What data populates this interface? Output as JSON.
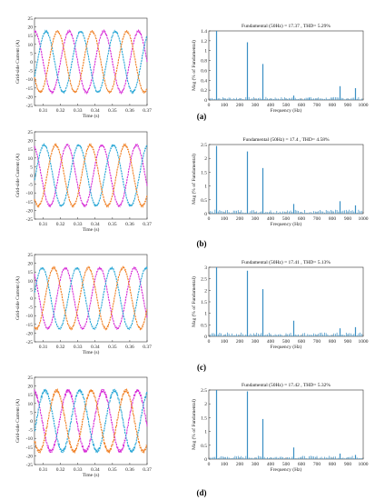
{
  "colors": {
    "phase_a": "#d62ad6",
    "phase_b": "#2aa7d6",
    "phase_c": "#f07f22",
    "spectrum": "#3a8fc4",
    "frame": "#333333"
  },
  "chart_data": [
    {
      "type": "line",
      "panel": "(a)",
      "title": "",
      "xlabel": "Time (s)",
      "ylabel": "Grid-side Current (A)",
      "xlim": [
        0.305,
        0.37
      ],
      "ylim": [
        -25,
        25
      ],
      "x_ticks": [
        "0.31",
        "0.32",
        "0.33",
        "0.34",
        "0.35",
        "0.36",
        "0.37"
      ],
      "y_ticks": [
        "-25",
        "-20",
        "-15",
        "-10",
        "-5",
        "0",
        "5",
        "10",
        "15",
        "20",
        "25"
      ],
      "frequency_hz": 50,
      "series": [
        {
          "amplitude": 17.4,
          "phase_deg": 0,
          "color": "#d62ad6"
        },
        {
          "amplitude": 17.4,
          "phase_deg": -120,
          "color": "#2aa7d6"
        },
        {
          "amplitude": 17.4,
          "phase_deg": 120,
          "color": "#f07f22"
        }
      ]
    },
    {
      "type": "bar",
      "panel": "(a)",
      "title": "Fundamental (50Hz) = 17.37 , THD= 5.29%",
      "xlabel": "Frequency (Hz)",
      "ylabel": "Mag (% of Fundamental)",
      "xlim": [
        0,
        1000
      ],
      "ylim": [
        0,
        1.4
      ],
      "x_ticks": [
        "0",
        "100",
        "200",
        "300",
        "400",
        "500",
        "600",
        "700",
        "800",
        "900",
        "1000"
      ],
      "y_ticks": [
        "0",
        "0.2",
        "0.4",
        "0.6",
        "0.8",
        "1",
        "1.2",
        "1.4"
      ],
      "harmonics": [
        {
          "freq": 50,
          "mag": 1.4
        },
        {
          "freq": 250,
          "mag": 1.17
        },
        {
          "freq": 350,
          "mag": 0.73
        },
        {
          "freq": 550,
          "mag": 0.09
        },
        {
          "freq": 650,
          "mag": 0.05
        },
        {
          "freq": 850,
          "mag": 0.28
        },
        {
          "freq": 950,
          "mag": 0.24
        }
      ],
      "noise_level": 0.05
    },
    {
      "type": "line",
      "panel": "(b)",
      "title": "",
      "xlabel": "Time (s)",
      "ylabel": "Grid-side Current (A)",
      "xlim": [
        0.305,
        0.37
      ],
      "ylim": [
        -25,
        25
      ],
      "x_ticks": [
        "0.31",
        "0.32",
        "0.33",
        "0.34",
        "0.35",
        "0.36",
        "0.37"
      ],
      "y_ticks": [
        "-25",
        "-20",
        "-15",
        "-10",
        "-5",
        "0",
        "5",
        "10",
        "15",
        "20",
        "25"
      ],
      "frequency_hz": 50,
      "series": [
        {
          "amplitude": 17.4,
          "phase_deg": 20,
          "color": "#d62ad6"
        },
        {
          "amplitude": 17.4,
          "phase_deg": -100,
          "color": "#2aa7d6"
        },
        {
          "amplitude": 17.4,
          "phase_deg": 140,
          "color": "#f07f22"
        }
      ]
    },
    {
      "type": "bar",
      "panel": "(b)",
      "title": "Fundamental (50Hz) = 17.4 , THD= 4.58%",
      "xlabel": "Frequency (Hz)",
      "ylabel": "Mag (% of Fundamental)",
      "xlim": [
        0,
        1000
      ],
      "ylim": [
        0,
        2.5
      ],
      "x_ticks": [
        "0",
        "100",
        "200",
        "300",
        "400",
        "500",
        "600",
        "700",
        "800",
        "900",
        "1000"
      ],
      "y_ticks": [
        "0",
        "0.5",
        "1",
        "1.5",
        "2",
        "2.5"
      ],
      "harmonics": [
        {
          "freq": 50,
          "mag": 2.45
        },
        {
          "freq": 250,
          "mag": 2.25
        },
        {
          "freq": 350,
          "mag": 1.65
        },
        {
          "freq": 550,
          "mag": 0.35
        },
        {
          "freq": 850,
          "mag": 0.45
        },
        {
          "freq": 950,
          "mag": 0.3
        }
      ],
      "noise_level": 0.12
    },
    {
      "type": "line",
      "panel": "(c)",
      "title": "",
      "xlabel": "Time (s)",
      "ylabel": "Grid-side Current (A)",
      "xlim": [
        0.305,
        0.37
      ],
      "ylim": [
        -25,
        25
      ],
      "x_ticks": [
        "0.31",
        "0.32",
        "0.33",
        "0.34",
        "0.35",
        "0.36",
        "0.37"
      ],
      "y_ticks": [
        "-25",
        "-20",
        "-15",
        "-10",
        "-5",
        "0",
        "5",
        "10",
        "15",
        "20",
        "25"
      ],
      "frequency_hz": 50,
      "series": [
        {
          "amplitude": 17.4,
          "phase_deg": 40,
          "color": "#d62ad6"
        },
        {
          "amplitude": 17.4,
          "phase_deg": -80,
          "color": "#2aa7d6"
        },
        {
          "amplitude": 17.4,
          "phase_deg": 160,
          "color": "#f07f22"
        }
      ]
    },
    {
      "type": "bar",
      "panel": "(c)",
      "title": "Fundamental (50Hz) = 17.41 , THD= 5.13%",
      "xlabel": "Frequency (Hz)",
      "ylabel": "Mag (% of Fundamental)",
      "xlim": [
        0,
        1000
      ],
      "ylim": [
        0,
        3
      ],
      "x_ticks": [
        "0",
        "100",
        "200",
        "300",
        "400",
        "500",
        "600",
        "700",
        "800",
        "900",
        "1000"
      ],
      "y_ticks": [
        "0",
        "0.5",
        "1",
        "1.5",
        "2",
        "2.5",
        "3"
      ],
      "harmonics": [
        {
          "freq": 50,
          "mag": 3.0
        },
        {
          "freq": 250,
          "mag": 2.85
        },
        {
          "freq": 350,
          "mag": 2.05
        },
        {
          "freq": 550,
          "mag": 0.68
        },
        {
          "freq": 850,
          "mag": 0.35
        },
        {
          "freq": 950,
          "mag": 0.4
        }
      ],
      "noise_level": 0.14
    },
    {
      "type": "line",
      "panel": "(d)",
      "title": "",
      "xlabel": "Time (s)",
      "ylabel": "Grid-side Current (A)",
      "xlim": [
        0.305,
        0.37
      ],
      "ylim": [
        -25,
        25
      ],
      "x_ticks": [
        "0.31",
        "0.32",
        "0.33",
        "0.34",
        "0.35",
        "0.36",
        "0.37"
      ],
      "y_ticks": [
        "-25",
        "-20",
        "-15",
        "-10",
        "-5",
        "0",
        "5",
        "10",
        "15",
        "20",
        "25"
      ],
      "frequency_hz": 50,
      "series": [
        {
          "amplitude": 17.4,
          "phase_deg": 10,
          "color": "#d62ad6"
        },
        {
          "amplitude": 17.4,
          "phase_deg": -110,
          "color": "#2aa7d6"
        },
        {
          "amplitude": 17.4,
          "phase_deg": 130,
          "color": "#f07f22"
        }
      ]
    },
    {
      "type": "bar",
      "panel": "(d)",
      "title": "Fundamental (50Hz) = 17.42 , THD= 5.32%",
      "xlabel": "Frequency (Hz)",
      "ylabel": "Mag (% of Fundamental)",
      "xlim": [
        0,
        1000
      ],
      "ylim": [
        0,
        2.5
      ],
      "x_ticks": [
        "0",
        "100",
        "200",
        "300",
        "400",
        "500",
        "600",
        "700",
        "800",
        "900",
        "1000"
      ],
      "y_ticks": [
        "0",
        "0.5",
        "1",
        "1.5",
        "2",
        "2.5"
      ],
      "harmonics": [
        {
          "freq": 50,
          "mag": 2.5
        },
        {
          "freq": 250,
          "mag": 2.45
        },
        {
          "freq": 350,
          "mag": 1.45
        },
        {
          "freq": 550,
          "mag": 0.42
        },
        {
          "freq": 850,
          "mag": 0.2
        },
        {
          "freq": 950,
          "mag": 0.15
        }
      ],
      "noise_level": 0.1
    }
  ],
  "panel_labels": [
    "(a)",
    "(b)",
    "(c)",
    "(d)"
  ]
}
